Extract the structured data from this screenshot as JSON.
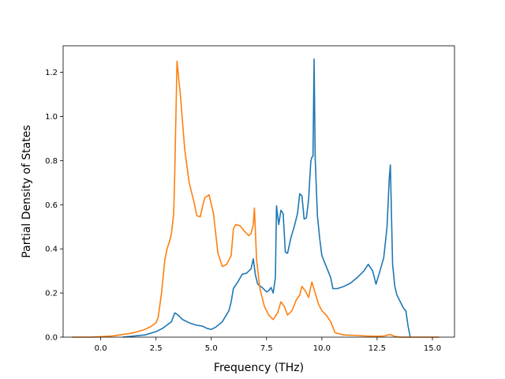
{
  "chart_data": {
    "type": "line",
    "xlabel": "Frequency (THz)",
    "ylabel": "Partial Density of States",
    "xlim": [
      -1.7,
      16.0
    ],
    "ylim": [
      0.0,
      1.32
    ],
    "xticks": [
      0.0,
      2.5,
      5.0,
      7.5,
      10.0,
      12.5,
      15.0
    ],
    "xtick_labels": [
      "0.0",
      "2.5",
      "5.0",
      "7.5",
      "10.0",
      "12.5",
      "15.0"
    ],
    "yticks": [
      0.0,
      0.2,
      0.4,
      0.6,
      0.8,
      1.0,
      1.2
    ],
    "ytick_labels": [
      "0.0",
      "0.2",
      "0.4",
      "0.6",
      "0.8",
      "1.0",
      "1.2"
    ],
    "grid": false,
    "legend": "none",
    "series": [
      {
        "color": "#1f77b4",
        "x": [
          1.0,
          1.5,
          2.0,
          2.5,
          2.8,
          3.0,
          3.2,
          3.35,
          3.5,
          3.7,
          4.0,
          4.3,
          4.6,
          4.8,
          5.0,
          5.2,
          5.5,
          5.8,
          5.9,
          6.0,
          6.2,
          6.4,
          6.6,
          6.8,
          6.9,
          7.0,
          7.1,
          7.3,
          7.5,
          7.6,
          7.7,
          7.8,
          7.9,
          7.95,
          8.05,
          8.15,
          8.25,
          8.35,
          8.45,
          8.6,
          8.75,
          8.9,
          9.0,
          9.1,
          9.2,
          9.3,
          9.4,
          9.5,
          9.55,
          9.6,
          9.65,
          9.7,
          9.8,
          9.9,
          10.0,
          10.2,
          10.4,
          10.5,
          10.7,
          11.0,
          11.3,
          11.6,
          11.9,
          12.1,
          12.3,
          12.45,
          12.6,
          12.8,
          12.95,
          13.05,
          13.1,
          13.2,
          13.3,
          13.4,
          13.5,
          13.7,
          13.8,
          13.9,
          14.0
        ],
        "y": [
          0.0,
          0.005,
          0.01,
          0.025,
          0.04,
          0.055,
          0.07,
          0.11,
          0.1,
          0.08,
          0.065,
          0.055,
          0.05,
          0.04,
          0.035,
          0.045,
          0.07,
          0.12,
          0.16,
          0.22,
          0.25,
          0.285,
          0.29,
          0.31,
          0.355,
          0.28,
          0.24,
          0.225,
          0.205,
          0.21,
          0.225,
          0.2,
          0.27,
          0.595,
          0.51,
          0.575,
          0.56,
          0.385,
          0.38,
          0.45,
          0.5,
          0.56,
          0.65,
          0.64,
          0.535,
          0.54,
          0.62,
          0.795,
          0.815,
          0.82,
          1.26,
          0.81,
          0.55,
          0.45,
          0.37,
          0.32,
          0.27,
          0.22,
          0.22,
          0.23,
          0.245,
          0.27,
          0.3,
          0.33,
          0.3,
          0.24,
          0.29,
          0.36,
          0.5,
          0.72,
          0.78,
          0.33,
          0.23,
          0.19,
          0.17,
          0.13,
          0.12,
          0.05,
          0.0
        ]
      },
      {
        "color": "#ff7f0e",
        "x": [
          -1.3,
          -0.5,
          0.0,
          0.5,
          1.0,
          1.5,
          2.0,
          2.3,
          2.5,
          2.6,
          2.75,
          2.9,
          3.0,
          3.1,
          3.2,
          3.3,
          3.35,
          3.45,
          3.6,
          3.8,
          4.0,
          4.2,
          4.35,
          4.5,
          4.6,
          4.7,
          4.9,
          5.1,
          5.3,
          5.5,
          5.7,
          5.9,
          6.0,
          6.1,
          6.3,
          6.5,
          6.7,
          6.8,
          6.9,
          6.95,
          7.05,
          7.2,
          7.4,
          7.6,
          7.8,
          8.0,
          8.15,
          8.3,
          8.45,
          8.65,
          8.85,
          9.0,
          9.1,
          9.25,
          9.4,
          9.55,
          9.7,
          9.85,
          10.0,
          10.2,
          10.4,
          10.6,
          11.0,
          11.5,
          12.0,
          12.5,
          12.8,
          13.0,
          13.1,
          13.25,
          13.5,
          14.0,
          14.5,
          15.0,
          15.3
        ],
        "y": [
          0.0,
          0.0,
          0.002,
          0.005,
          0.012,
          0.02,
          0.035,
          0.05,
          0.065,
          0.09,
          0.2,
          0.35,
          0.4,
          0.43,
          0.47,
          0.56,
          0.75,
          1.25,
          1.1,
          0.85,
          0.7,
          0.62,
          0.55,
          0.545,
          0.59,
          0.63,
          0.645,
          0.56,
          0.38,
          0.32,
          0.33,
          0.37,
          0.49,
          0.51,
          0.505,
          0.48,
          0.46,
          0.47,
          0.51,
          0.585,
          0.35,
          0.22,
          0.14,
          0.1,
          0.08,
          0.11,
          0.16,
          0.14,
          0.1,
          0.12,
          0.17,
          0.19,
          0.23,
          0.21,
          0.18,
          0.25,
          0.2,
          0.15,
          0.12,
          0.1,
          0.07,
          0.02,
          0.01,
          0.008,
          0.005,
          0.004,
          0.005,
          0.01,
          0.012,
          0.005,
          0.0,
          0.0,
          0.0,
          0.0,
          0.0
        ]
      }
    ]
  }
}
